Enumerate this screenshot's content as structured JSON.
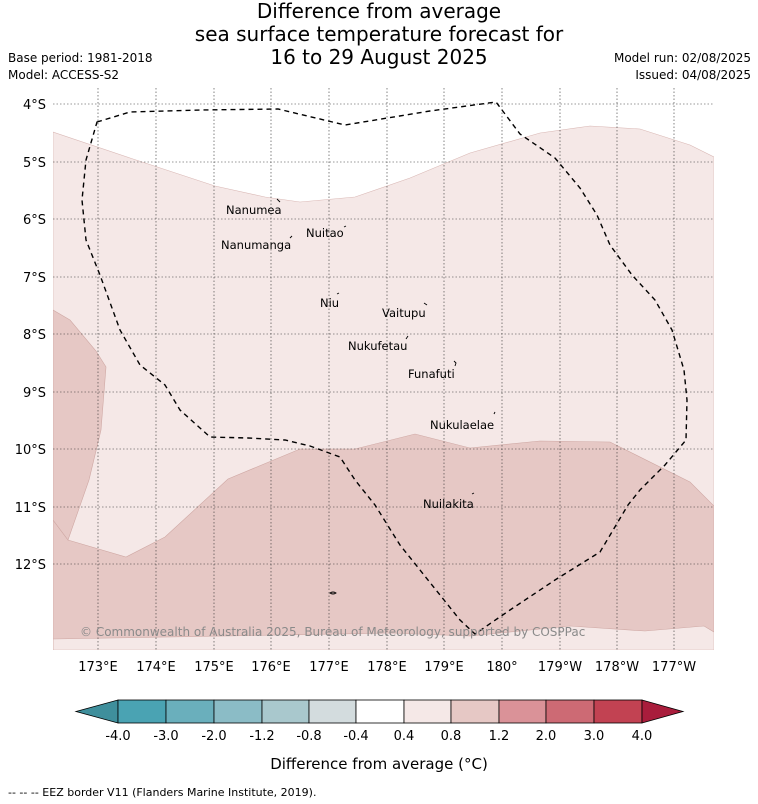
{
  "header": {
    "title_line1": "Difference from average",
    "title_line2": "sea surface temperature forecast for",
    "title_line3": "16 to 29 August 2025",
    "base_period": "Base period: 1981-2018",
    "model": "Model: ACCESS-S2",
    "model_run": "Model run: 02/08/2025",
    "issued": "Issued: 04/08/2025"
  },
  "map": {
    "lat_labels": [
      "4°S",
      "5°S",
      "6°S",
      "7°S",
      "8°S",
      "9°S",
      "10°S",
      "11°S",
      "12°S"
    ],
    "lon_labels": [
      "173°E",
      "174°E",
      "175°E",
      "176°E",
      "177°E",
      "178°E",
      "179°E",
      "180°",
      "179°W",
      "178°W",
      "177°W"
    ],
    "places": [
      "Nanumea",
      "Nuitao",
      "Nanumanga",
      "Niu",
      "Vaitupu",
      "Nukufetau",
      "Funafuti",
      "Nukulaelae",
      "Nuilakita"
    ],
    "copyright": "© Commonwealth of Australia 2025, Bureau of Meteorology, supported by COSPPac",
    "colors": {
      "band_0_4_to_0_8": "#f5e8e7",
      "band_0_8_to_1_2": "#e6c8c5",
      "eez_line": "#000000"
    }
  },
  "colorbar": {
    "tick_labels": [
      "-4.0",
      "-3.0",
      "-2.0",
      "-1.2",
      "-0.8",
      "-0.4",
      "0.4",
      "0.8",
      "1.2",
      "2.0",
      "3.0",
      "4.0"
    ],
    "colors": [
      "#3f8f9c",
      "#4aa3b3",
      "#6aafbc",
      "#8bbcc6",
      "#a9c8cd",
      "#d3dcde",
      "#ffffff",
      "#f5e8e7",
      "#e6c8c5",
      "#da9298",
      "#cd6a74",
      "#c24252",
      "#a91d3c"
    ],
    "label": "Difference from average (°C)"
  },
  "footer": {
    "legend": "-- -- -- EEZ border V11 (Flanders Marine Institute, 2019)."
  }
}
